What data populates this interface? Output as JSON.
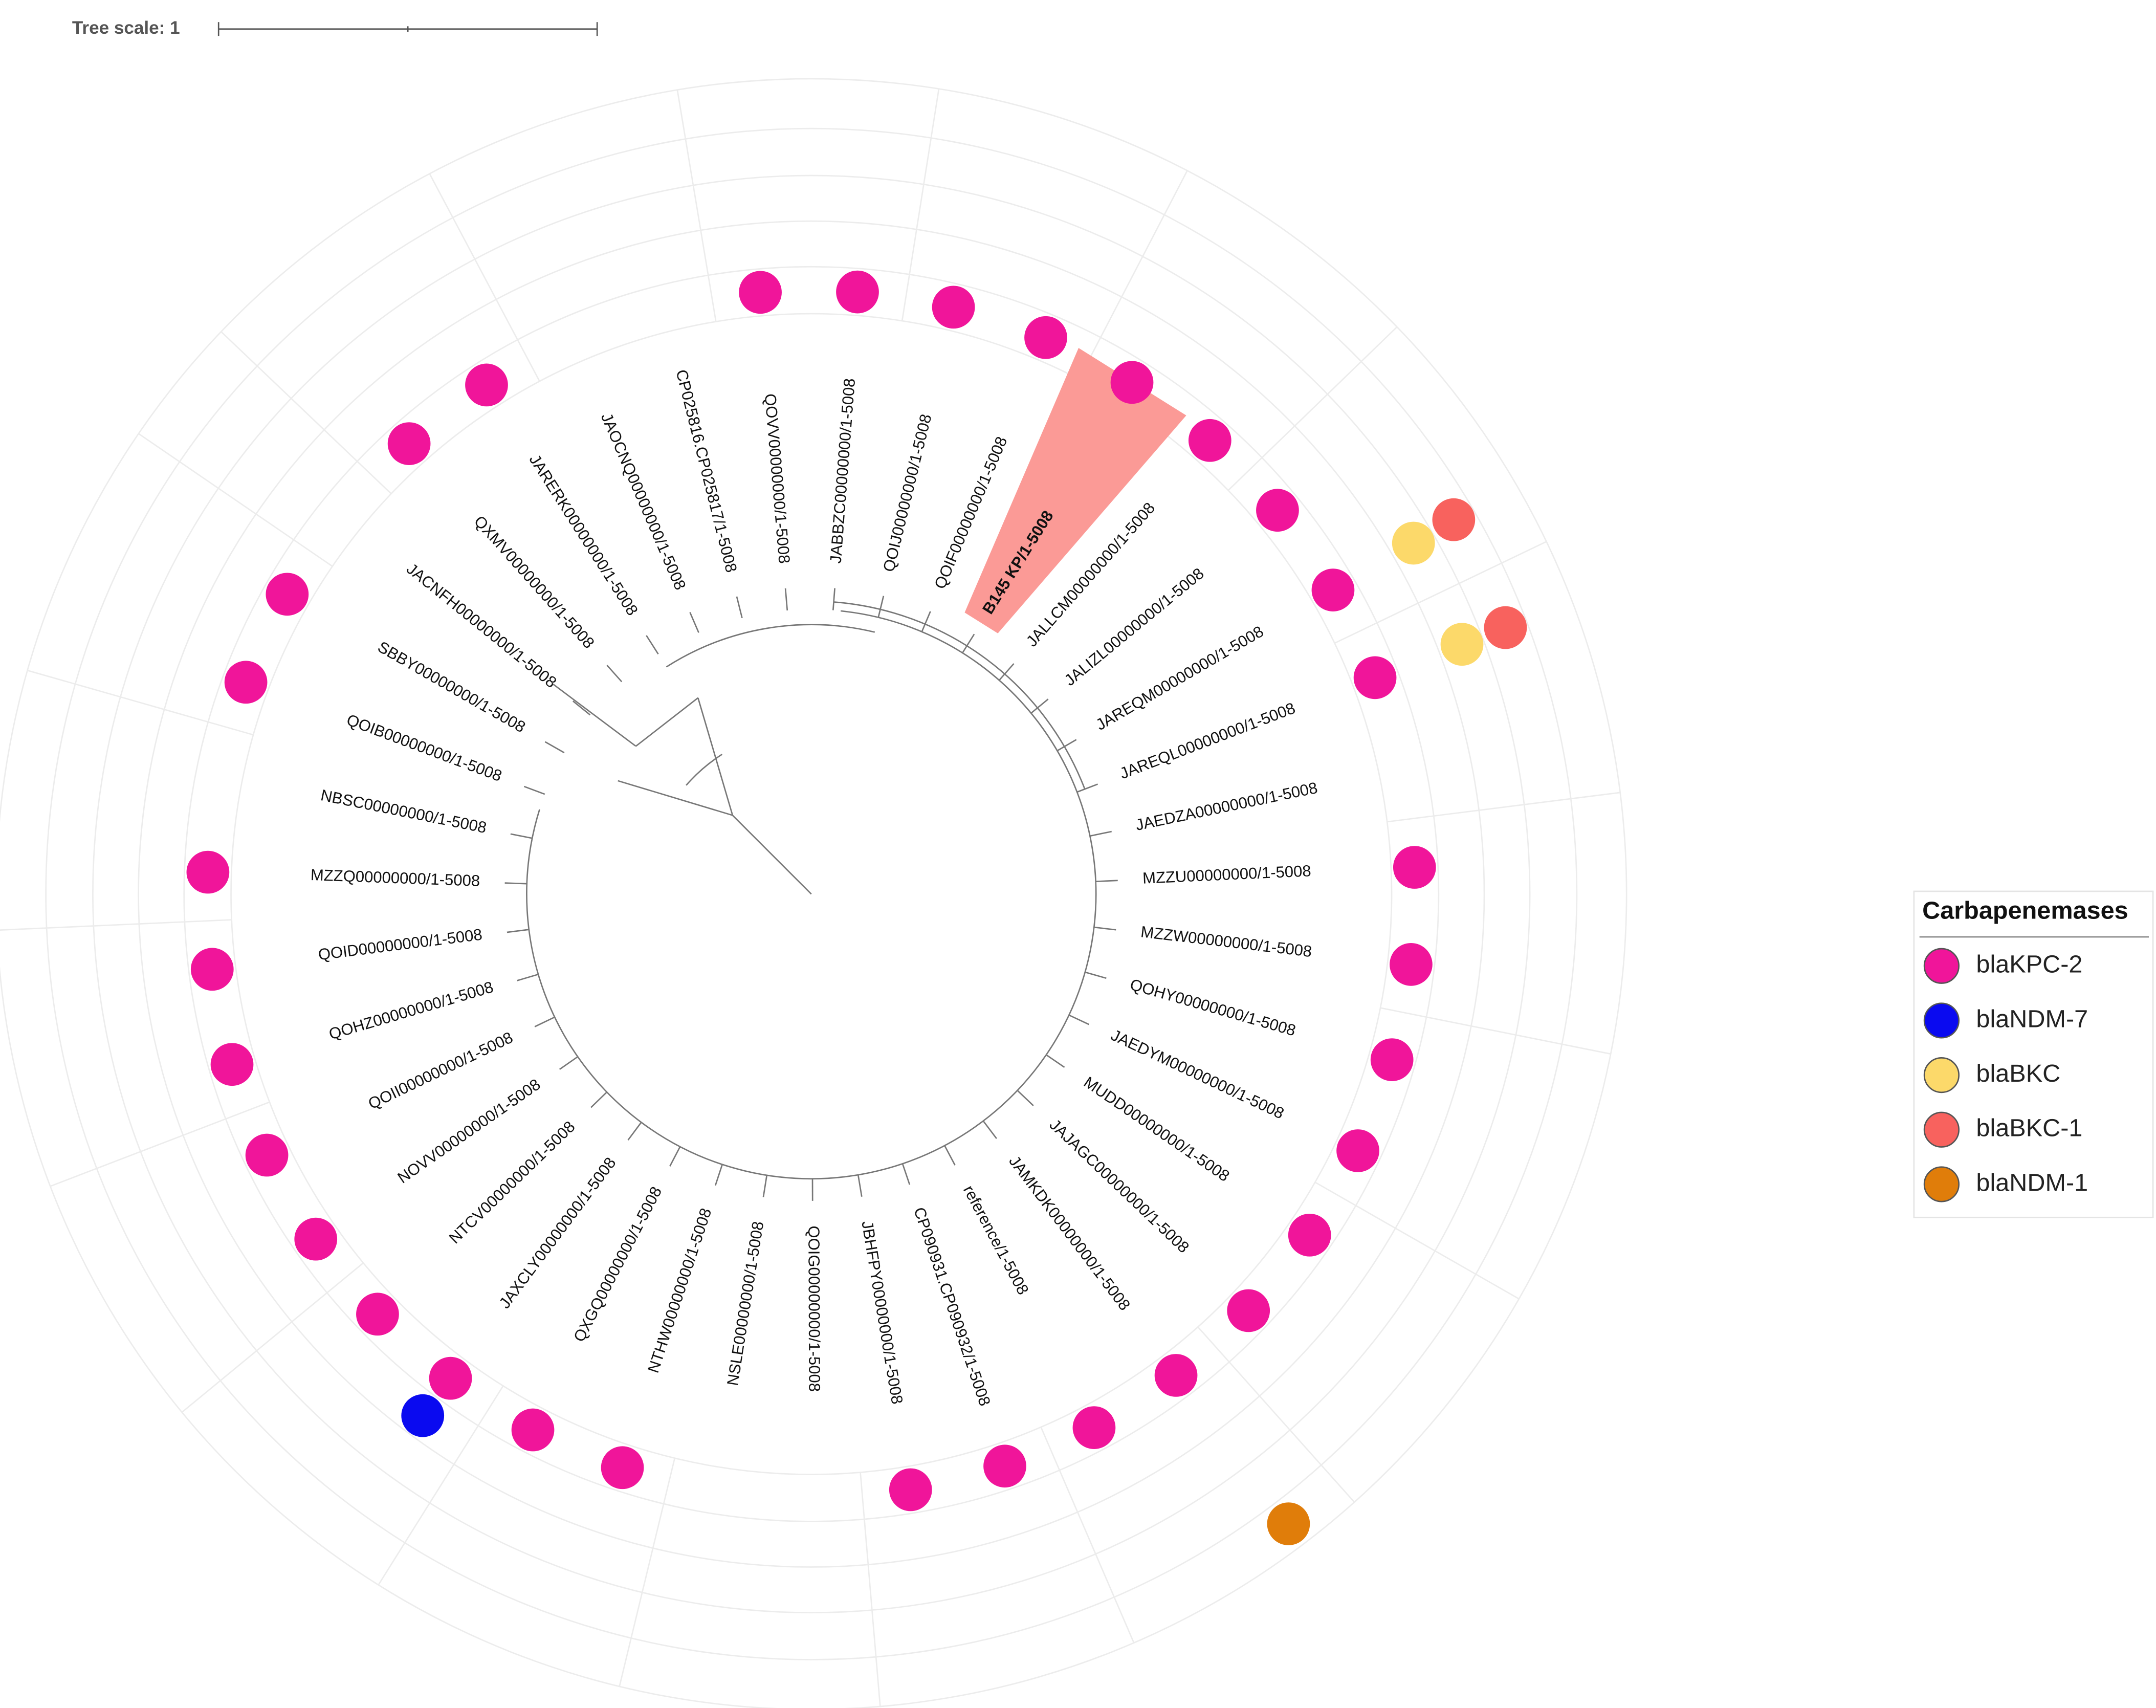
{
  "scale_bar": {
    "label": "Tree scale: 1"
  },
  "legend": {
    "title": "Carbapenemases",
    "items": [
      {
        "label": "blaKPC-2",
        "color": "#f0159a"
      },
      {
        "label": "blaNDM-7",
        "color": "#0a0af0"
      },
      {
        "label": "blaBKC",
        "color": "#fcd96a"
      },
      {
        "label": "blaBKC-1",
        "color": "#f8625e"
      },
      {
        "label": "blaNDM-1",
        "color": "#e07d0a"
      }
    ]
  },
  "leaves": [
    {
      "label": "JACNFH00000000/1-5008",
      "markers": []
    },
    {
      "label": "QXMV00000000/1-5008",
      "markers": [
        0
      ]
    },
    {
      "label": "JARERK00000000/1-5008",
      "markers": [
        0
      ]
    },
    {
      "label": "JAOCNQ00000000/1-5008",
      "markers": []
    },
    {
      "label": "CP025816.CP025817/1-5008",
      "markers": []
    },
    {
      "label": "QOVV00000000/1-5008",
      "markers": [
        0
      ]
    },
    {
      "label": "JABBZC00000000/1-5008",
      "markers": [
        0
      ]
    },
    {
      "label": "QOIJ00000000/1-5008",
      "markers": [
        0
      ]
    },
    {
      "label": "QOIF00000000/1-5008",
      "markers": [
        0
      ]
    },
    {
      "label": "B145 KP/1-5008",
      "markers": [
        0
      ],
      "highlight": true
    },
    {
      "label": "JALLCM00000000/1-5008",
      "markers": [
        0
      ]
    },
    {
      "label": "JALIZL00000000/1-5008",
      "markers": [
        0
      ]
    },
    {
      "label": "JAREQM00000000/1-5008",
      "markers": [
        0,
        2,
        3
      ]
    },
    {
      "label": "JAREQL00000000/1-5008",
      "markers": [
        0,
        2,
        3
      ]
    },
    {
      "label": "JAEDZA00000000/1-5008",
      "markers": []
    },
    {
      "label": "MZZU00000000/1-5008",
      "markers": [
        0
      ]
    },
    {
      "label": "MZZW00000000/1-5008",
      "markers": [
        0
      ]
    },
    {
      "label": "QOHY00000000/1-5008",
      "markers": [
        0
      ]
    },
    {
      "label": "JAEDYM00000000/1-5008",
      "markers": [
        0
      ]
    },
    {
      "label": "MUDD00000000/1-5008",
      "markers": [
        0
      ]
    },
    {
      "label": "JAJAGC00000000/1-5008",
      "markers": [
        0
      ]
    },
    {
      "label": "JAMKDK00000000/1-5008",
      "markers": [
        0,
        4
      ]
    },
    {
      "label": "reference/1-5008",
      "markers": [
        0
      ]
    },
    {
      "label": "CP090931.CP090932/1-5008",
      "markers": [
        0
      ]
    },
    {
      "label": "JBHFPY00000000/1-5008",
      "markers": [
        0
      ]
    },
    {
      "label": "QOIG00000000/1-5008",
      "markers": []
    },
    {
      "label": "NSLE00000000/1-5008",
      "markers": []
    },
    {
      "label": "NTHW00000000/1-5008",
      "markers": [
        0
      ]
    },
    {
      "label": "QXGQ00000000/1-5008",
      "markers": [
        0
      ]
    },
    {
      "label": "JAXCLY00000000/1-5008",
      "markers": [
        0,
        1
      ]
    },
    {
      "label": "NTCV00000000/1-5008",
      "markers": [
        0
      ]
    },
    {
      "label": "NOVV00000000/1-5008",
      "markers": [
        0
      ]
    },
    {
      "label": "QOII00000000/1-5008",
      "markers": [
        0
      ]
    },
    {
      "label": "QOHZ00000000/1-5008",
      "markers": [
        0
      ]
    },
    {
      "label": "QOID00000000/1-5008",
      "markers": [
        0
      ]
    },
    {
      "label": "MZZQ00000000/1-5008",
      "markers": [
        0
      ]
    },
    {
      "label": "NBSC00000000/1-5008",
      "markers": []
    },
    {
      "label": "QOIB00000000/1-5008",
      "markers": [
        0
      ]
    },
    {
      "label": "SBBY00000000/1-5008",
      "markers": [
        0
      ]
    }
  ]
}
